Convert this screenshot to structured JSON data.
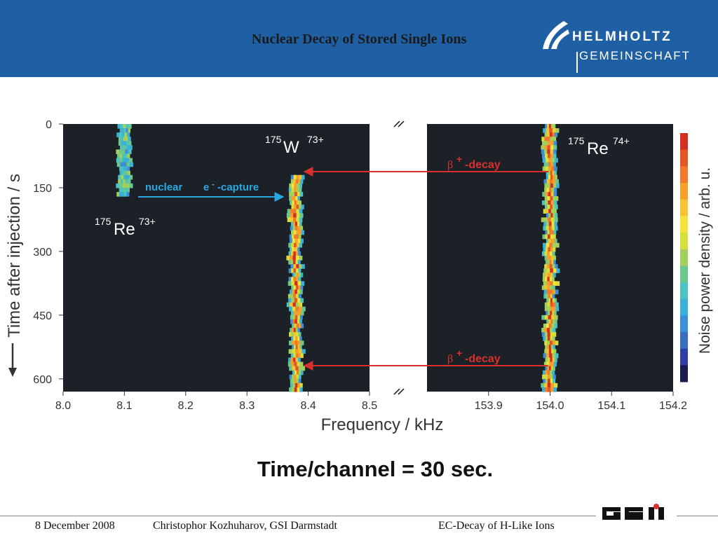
{
  "slide": {
    "title": "Nuclear Decay of Stored Single Ions",
    "caption": "Time/channel = 30 sec.",
    "footer": {
      "date": "8 December 2008",
      "author": "Christophor Kozhuharov, GSI Darmstadt",
      "topic": "EC-Decay of H-Like Ions"
    },
    "logo": {
      "line1": "HELMHOLTZ",
      "line2": "GEMEINSCHAFT"
    },
    "gsi_logo": "GSI",
    "colors": {
      "header_bg": "#1f5fa3",
      "plot_bg": "#1c2128",
      "arrow_blue": "#2aa7df",
      "arrow_red": "#d8312b"
    }
  },
  "chart_data": {
    "type": "heatmap",
    "xlabel": "Frequency / kHz",
    "ylabel": "Time after injection / s",
    "colorbar_label": "Noise power density / arb. u.",
    "y_ticks": [
      "0",
      "150",
      "300",
      "450",
      "600"
    ],
    "ylim": [
      0,
      630
    ],
    "y_direction": "downward",
    "x_panels": [
      {
        "xlim": [
          8.0,
          8.5
        ],
        "ticks": [
          "8.0",
          "8.1",
          "8.2",
          "8.3",
          "8.4",
          "8.5"
        ]
      },
      {
        "xlim": [
          153.8,
          154.2
        ],
        "ticks": [
          "153.9",
          "154.0",
          "154.1",
          "154.2"
        ]
      }
    ],
    "axis_break": "between 8.5 and 153.8 kHz",
    "traces": [
      {
        "ion": "175Re73+",
        "frequency_khz": 8.1,
        "time_s": [
          0,
          170
        ]
      },
      {
        "ion": "175W73+",
        "frequency_khz": 8.38,
        "time_s": [
          120,
          630
        ]
      },
      {
        "ion": "175Re74+",
        "frequency_khz": 154.0,
        "time_s": [
          0,
          630
        ]
      }
    ],
    "annotations": {
      "re73": {
        "mass": "175",
        "symbol": "Re",
        "charge": "73+"
      },
      "w73": {
        "mass": "175",
        "symbol": "W",
        "charge": "73+"
      },
      "re74": {
        "mass": "175",
        "symbol": "Re",
        "charge": "74+"
      },
      "ec_label": {
        "text1": "nuclear",
        "text2": "e",
        "sup": "-",
        "text3": "-capture"
      },
      "beta_label": {
        "greek": "β",
        "sup": "+",
        "text": "-decay"
      },
      "arrows": [
        {
          "label": "nuclear e--capture",
          "time_s": 170,
          "from": "175Re73+",
          "to": "175W73+"
        },
        {
          "label": "β+ -decay",
          "time_s": 110,
          "from": "175Re74+",
          "to": "175W73+"
        },
        {
          "label": "β+ -decay",
          "time_s": 580,
          "from": "175Re74+",
          "to": "175W73+"
        }
      ]
    },
    "colorscale": [
      "#1b1b52",
      "#2f3fa0",
      "#3a6dbf",
      "#3c8ed6",
      "#3ab2d8",
      "#4cc3c0",
      "#6cc78f",
      "#a3d05a",
      "#d9df3a",
      "#f5e23a",
      "#f6c332",
      "#f3a02d",
      "#ee7a2b",
      "#e35626",
      "#d33022"
    ]
  }
}
